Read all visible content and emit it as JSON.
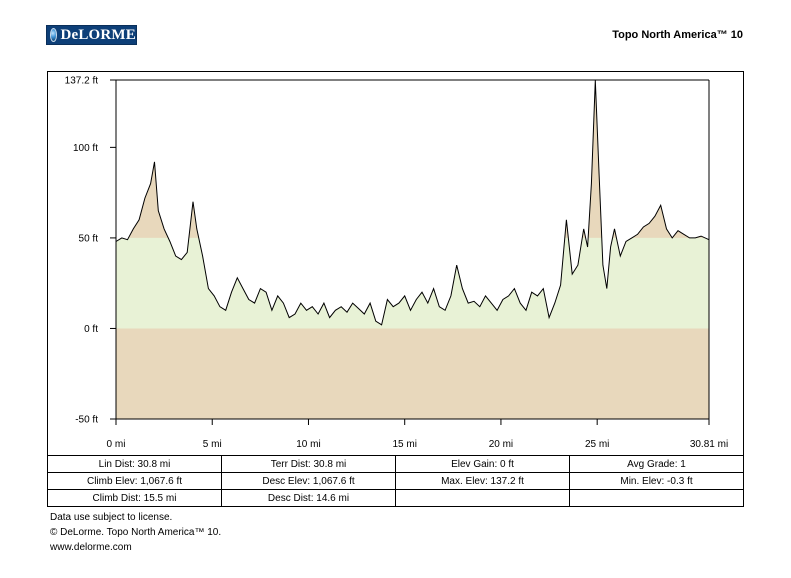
{
  "header": {
    "logo_text": "DeLORME",
    "product": "Topo North America™ 10"
  },
  "colors": {
    "above_fill": "#e8f2d6",
    "highlight_fill": "#e8d8bc",
    "below_fill": "#e8d8bc",
    "line": "#000000"
  },
  "chart_data": {
    "type": "area",
    "x_unit": "mi",
    "y_unit": "ft",
    "xlim": [
      0,
      30.81
    ],
    "ylim": [
      -50,
      137.2
    ],
    "yticks": [
      -50,
      0,
      50,
      100,
      137.2
    ],
    "ytick_labels": [
      "-50 ft",
      "0 ft",
      "50 ft",
      "100 ft",
      "137.2 ft"
    ],
    "xticks": [
      0,
      5,
      10,
      15,
      20,
      25,
      30.81
    ],
    "xtick_labels": [
      "0 mi",
      "5 mi",
      "10 mi",
      "15 mi",
      "20 mi",
      "25 mi",
      "30.81 mi"
    ],
    "highlight_threshold": 50,
    "series": [
      {
        "x": [
          0,
          0.3,
          0.6,
          0.9,
          1.2,
          1.5,
          1.8,
          2.0,
          2.2,
          2.5,
          2.8,
          3.1,
          3.4,
          3.7,
          4.0,
          4.2,
          4.5,
          4.8,
          5.1,
          5.4,
          5.7,
          6.0,
          6.3,
          6.6,
          6.9,
          7.2,
          7.5,
          7.8,
          8.1,
          8.4,
          8.7,
          9.0,
          9.3,
          9.6,
          9.9,
          10.2,
          10.5,
          10.8,
          11.1,
          11.4,
          11.7,
          12.0,
          12.3,
          12.6,
          12.9,
          13.2,
          13.5,
          13.8,
          14.1,
          14.4,
          14.7,
          15.0,
          15.3,
          15.6,
          15.9,
          16.2,
          16.5,
          16.8,
          17.1,
          17.4,
          17.7,
          18.0,
          18.3,
          18.6,
          18.9,
          19.2,
          19.5,
          19.8,
          20.1,
          20.4,
          20.7,
          21.0,
          21.3,
          21.6,
          21.9,
          22.2,
          22.5,
          22.8,
          23.1,
          23.4,
          23.7,
          24.0,
          24.3,
          24.5,
          24.7,
          24.9,
          25.1,
          25.3,
          25.5,
          25.7,
          25.9,
          26.2,
          26.5,
          26.8,
          27.1,
          27.4,
          27.7,
          28.0,
          28.3,
          28.6,
          28.9,
          29.2,
          29.5,
          29.8,
          30.1,
          30.4,
          30.81
        ],
        "y": [
          48,
          50,
          49,
          55,
          60,
          72,
          80,
          92,
          65,
          55,
          48,
          40,
          38,
          42,
          70,
          55,
          40,
          22,
          18,
          12,
          10,
          20,
          28,
          22,
          16,
          14,
          22,
          20,
          10,
          18,
          14,
          6,
          8,
          14,
          10,
          12,
          8,
          14,
          6,
          10,
          12,
          9,
          14,
          11,
          8,
          14,
          4,
          2,
          16,
          12,
          14,
          18,
          10,
          16,
          20,
          14,
          22,
          12,
          10,
          18,
          35,
          22,
          14,
          15,
          12,
          18,
          14,
          10,
          16,
          18,
          22,
          14,
          10,
          20,
          18,
          22,
          6,
          14,
          24,
          60,
          30,
          35,
          55,
          45,
          80,
          137,
          85,
          35,
          22,
          45,
          55,
          40,
          48,
          50,
          52,
          56,
          58,
          62,
          68,
          55,
          50,
          54,
          52,
          50,
          50,
          51,
          49
        ]
      }
    ]
  },
  "stats": {
    "rows": [
      [
        "Lin Dist:  30.8 mi",
        "Terr Dist:  30.8 mi",
        "Elev Gain:  0 ft",
        "Avg Grade:  1"
      ],
      [
        "Climb Elev:  1,067.6 ft",
        "Desc Elev:  1,067.6 ft",
        "Max. Elev:  137.2 ft",
        "Min. Elev:  -0.3 ft"
      ],
      [
        "Climb Dist:  15.5 mi",
        "Desc Dist:  14.6 mi",
        "",
        ""
      ]
    ]
  },
  "footer": {
    "line1": "Data use subject to license.",
    "line2": "© DeLorme. Topo North America™ 10.",
    "line3": "www.delorme.com"
  }
}
